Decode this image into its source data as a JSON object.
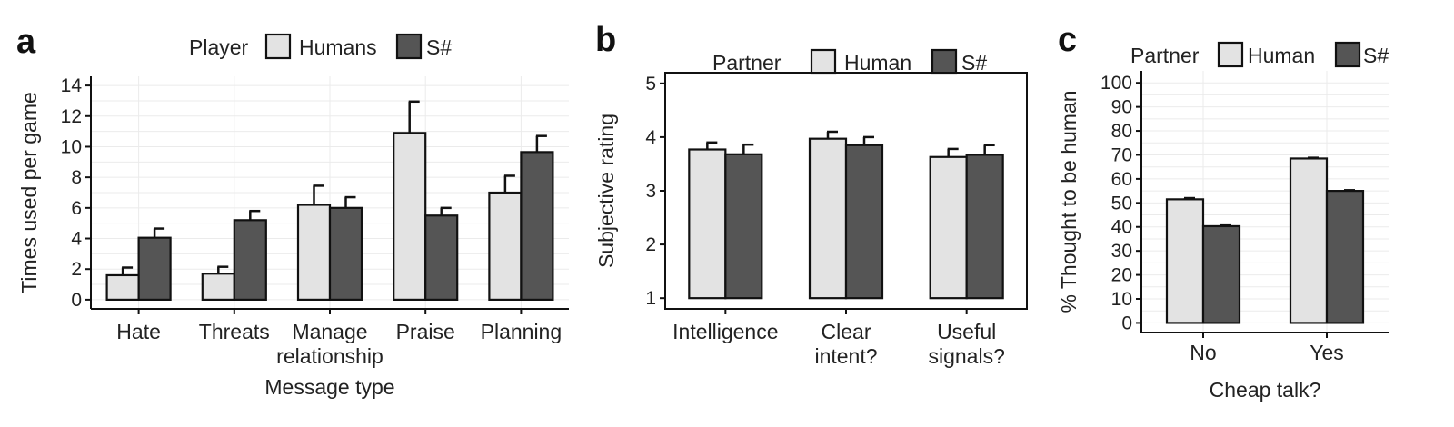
{
  "colors": {
    "light": "#e3e3e3",
    "dark": "#555555",
    "edge": "#111111"
  },
  "chart_data": [
    {
      "panel": "a",
      "type": "bar",
      "legend_title": "Player",
      "series": [
        {
          "name": "Humans",
          "color": "#e3e3e3",
          "values": [
            1.6,
            1.7,
            6.2,
            10.9,
            7.0
          ],
          "errors": [
            0.5,
            0.45,
            1.25,
            2.05,
            1.1
          ]
        },
        {
          "name": "S#",
          "color": "#555555",
          "values": [
            4.05,
            5.2,
            6.0,
            5.5,
            9.65
          ],
          "errors": [
            0.6,
            0.6,
            0.7,
            0.5,
            1.05
          ]
        }
      ],
      "categories": [
        [
          "Hate"
        ],
        [
          "Threats"
        ],
        [
          "Manage",
          "relationship"
        ],
        [
          "Praise"
        ],
        [
          "Planning"
        ]
      ],
      "ylabel": "Times used per game",
      "xlabel": "Message type",
      "ylim": [
        -0.6,
        14.6
      ],
      "yticks": [
        "0",
        "2",
        "4",
        "6",
        "8",
        "10",
        "12",
        "14"
      ]
    },
    {
      "panel": "b",
      "type": "bar",
      "legend_title": "Partner",
      "series": [
        {
          "name": "Human",
          "color": "#e3e3e3",
          "values": [
            3.77,
            3.97,
            3.63
          ],
          "errors": [
            0.13,
            0.13,
            0.15
          ]
        },
        {
          "name": "S#",
          "color": "#555555",
          "values": [
            3.68,
            3.85,
            3.67
          ],
          "errors": [
            0.18,
            0.15,
            0.18
          ]
        }
      ],
      "categories": [
        [
          "Intelligence"
        ],
        [
          "Clear",
          "intent?"
        ],
        [
          "Useful",
          "signals?"
        ]
      ],
      "ylabel": "Subjective rating",
      "xlabel": "",
      "ylim": [
        0.8,
        5.2
      ],
      "yticks": [
        "1",
        "2",
        "3",
        "4",
        "5"
      ]
    },
    {
      "panel": "c",
      "type": "bar",
      "legend_title": "Partner",
      "series": [
        {
          "name": "Human",
          "color": "#e3e3e3",
          "values": [
            51.5,
            68.5
          ],
          "errors": [
            0.5,
            0.3
          ]
        },
        {
          "name": "S#",
          "color": "#555555",
          "values": [
            40.3,
            55.0
          ],
          "errors": [
            0.3,
            0.3
          ]
        }
      ],
      "categories": [
        [
          "No"
        ],
        [
          "Yes"
        ]
      ],
      "ylabel": "% Thought to be human",
      "xlabel": "Cheap talk?",
      "ylim": [
        -4,
        105
      ],
      "yticks": [
        "0",
        "10",
        "20",
        "30",
        "40",
        "50",
        "60",
        "70",
        "80",
        "90",
        "100"
      ]
    }
  ]
}
